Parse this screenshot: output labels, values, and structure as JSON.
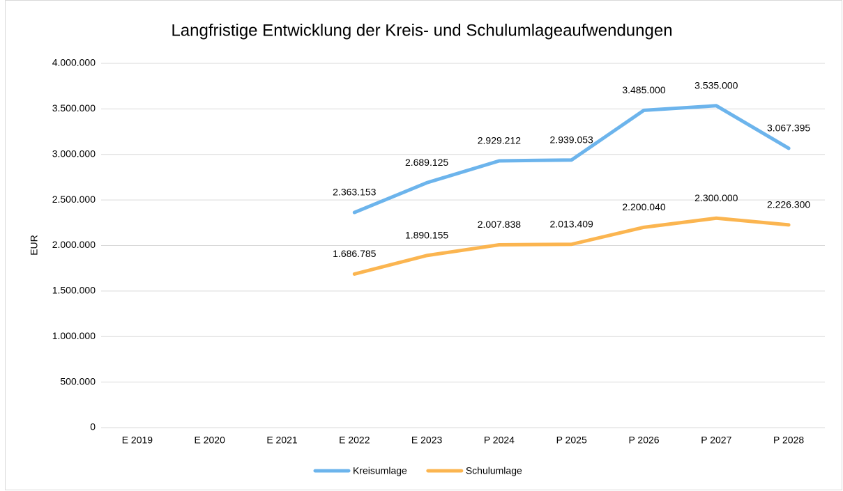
{
  "chart_data": {
    "type": "line",
    "title": "Langfristige Entwicklung der Kreis- und Schulumlageaufwendungen",
    "y_label": "EUR",
    "categories": [
      "E 2019",
      "E 2020",
      "E 2021",
      "E 2022",
      "E 2023",
      "P 2024",
      "P 2025",
      "P 2026",
      "P 2027",
      "P 2028"
    ],
    "series": [
      {
        "name": "Kreisumlage",
        "color": "#6cb4ec",
        "values": [
          null,
          null,
          null,
          2363153,
          2689125,
          2929212,
          2939053,
          3485000,
          3535000,
          3067395
        ],
        "value_labels": [
          null,
          null,
          null,
          "2.363.153",
          "2.689.125",
          "2.929.212",
          "2.939.053",
          "3.485.000",
          "3.535.000",
          "3.067.395"
        ]
      },
      {
        "name": "Schulumlage",
        "color": "#fbb550",
        "values": [
          null,
          null,
          null,
          1686785,
          1890155,
          2007838,
          2013409,
          2200040,
          2300000,
          2226300
        ],
        "value_labels": [
          null,
          null,
          null,
          "1.686.785",
          "1.890.155",
          "2.007.838",
          "2.013.409",
          "2.200.040",
          "2.300.000",
          "2.226.300"
        ]
      }
    ],
    "ylim": [
      0,
      4000000
    ],
    "yticks": [
      0,
      {
        "value": 500000,
        "label": "500.000"
      },
      {
        "value": 1000000,
        "label": "1.000.000"
      },
      {
        "value": 1500000,
        "label": "1.500.000"
      },
      {
        "value": 2000000,
        "label": "2.000.000"
      },
      {
        "value": 2500000,
        "label": "2.500.000"
      },
      {
        "value": 3000000,
        "label": "3.000.000"
      },
      {
        "value": 3500000,
        "label": "3.500.000"
      },
      {
        "value": 4000000,
        "label": "4.000.000"
      }
    ],
    "grid": true,
    "legend": "bottom"
  }
}
